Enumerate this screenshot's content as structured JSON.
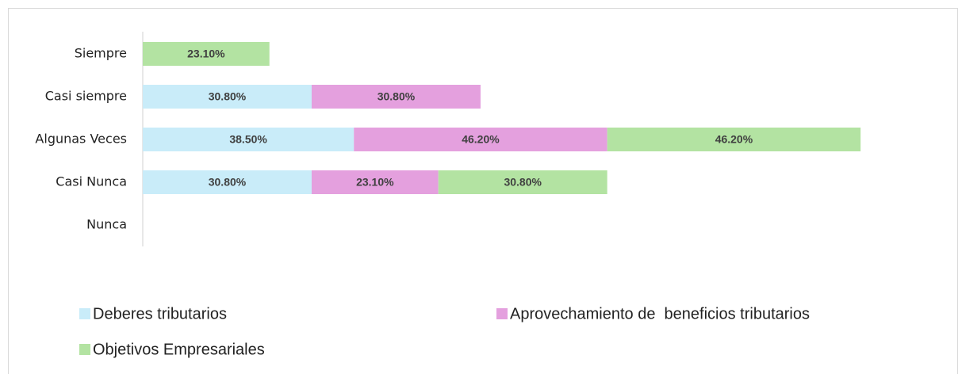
{
  "chart_data": {
    "type": "bar",
    "orientation": "horizontal",
    "stacked": true,
    "categories": [
      "Siempre",
      "Casi siempre",
      "Algunas Veces",
      "Casi Nunca",
      "Nunca"
    ],
    "series": [
      {
        "name": "Deberes tributarios",
        "color": "#c9ecf9",
        "values": [
          null,
          30.8,
          38.5,
          30.8,
          null
        ],
        "value_labels": [
          null,
          "30.80%",
          "38.50%",
          "30.80%",
          null
        ]
      },
      {
        "name": "Aprovechamiento de  beneficios tributarios",
        "color": "#e4a0de",
        "values": [
          null,
          30.8,
          46.2,
          23.1,
          null
        ],
        "value_labels": [
          null,
          "30.80%",
          "46.20%",
          "23.10%",
          null
        ]
      },
      {
        "name": "Objetivos Empresariales",
        "color": "#b3e3a2",
        "values": [
          23.1,
          null,
          46.2,
          30.8,
          null
        ],
        "value_labels": [
          "23.10%",
          null,
          "46.20%",
          "30.80%",
          null
        ]
      }
    ]
  }
}
